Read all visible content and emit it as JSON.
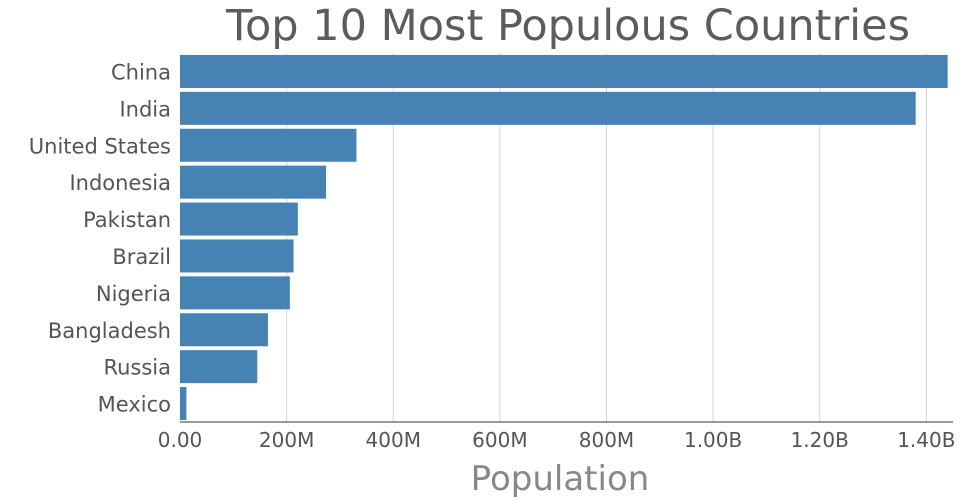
{
  "chart_data": {
    "type": "bar",
    "orientation": "horizontal",
    "title": "Top 10 Most Populous Countries",
    "xlabel": "Population",
    "ylabel": "",
    "xlim": [
      0,
      1450000000
    ],
    "xticks": [
      {
        "value": 0,
        "label": "0.00"
      },
      {
        "value": 200000000,
        "label": "200M"
      },
      {
        "value": 400000000,
        "label": "400M"
      },
      {
        "value": 600000000,
        "label": "600M"
      },
      {
        "value": 800000000,
        "label": "800M"
      },
      {
        "value": 1000000000,
        "label": "1.00B"
      },
      {
        "value": 1200000000,
        "label": "1.20B"
      },
      {
        "value": 1400000000,
        "label": "1.40B"
      }
    ],
    "grid": true,
    "legend": "none",
    "categories": [
      "China",
      "India",
      "United States",
      "Indonesia",
      "Pakistan",
      "Brazil",
      "Nigeria",
      "Bangladesh",
      "Russia",
      "Mexico"
    ],
    "values": [
      1440000000,
      1380000000,
      331000000,
      274000000,
      221000000,
      213000000,
      206000000,
      165000000,
      145000000,
      12000000
    ],
    "colors": {
      "bar": "#4682b4",
      "grid": "#d6d6d6",
      "axis": "#333333",
      "text": "#555555",
      "title": "#5c5c5c",
      "xlabel": "#888888"
    }
  }
}
